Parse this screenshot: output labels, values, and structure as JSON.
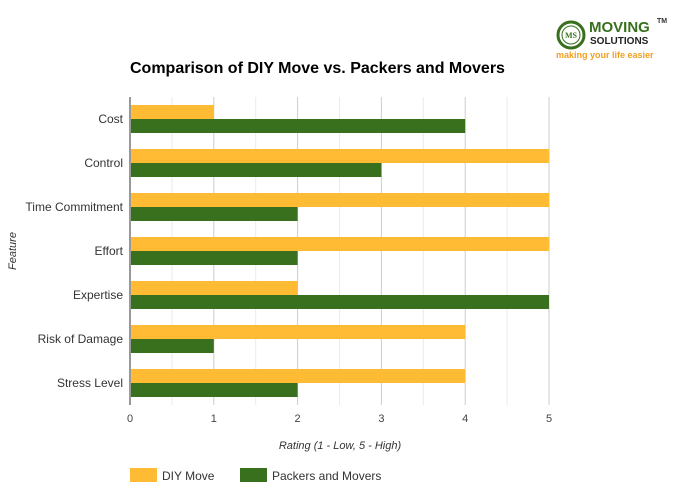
{
  "logo": {
    "line1": "MOVING",
    "line2": "SOLUTIONS",
    "tm": "TM",
    "tagline": "making your life easier",
    "badge": "MS"
  },
  "chart_data": {
    "type": "bar",
    "orientation": "horizontal",
    "title": "Comparison of DIY Move vs. Packers and Movers",
    "xlabel": "Rating (1 - Low, 5 - High)",
    "ylabel": "Feature",
    "categories": [
      "Cost",
      "Control",
      "Time Commitment",
      "Effort",
      "Expertise",
      "Risk of Damage",
      "Stress Level"
    ],
    "series": [
      {
        "name": "DIY Move",
        "color": "#FFBB33",
        "values": [
          1,
          5,
          5,
          5,
          2,
          4,
          4
        ]
      },
      {
        "name": "Packers and Movers",
        "color": "#38701E",
        "values": [
          4,
          3,
          2,
          2,
          5,
          1,
          2
        ]
      }
    ],
    "xlim": [
      0,
      5
    ],
    "xticks": [
      "0",
      "1",
      "2",
      "3",
      "4",
      "5"
    ],
    "grid": true,
    "legend": "bottom-left"
  }
}
